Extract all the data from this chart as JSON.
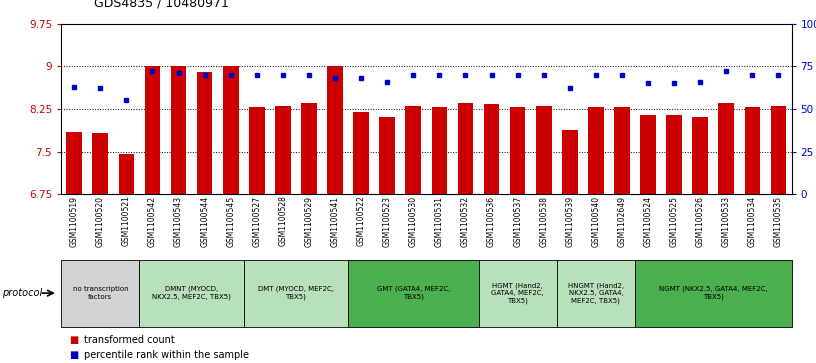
{
  "title": "GDS4835 / 10480971",
  "samples": [
    "GSM1100519",
    "GSM1100520",
    "GSM1100521",
    "GSM1100542",
    "GSM1100543",
    "GSM1100544",
    "GSM1100545",
    "GSM1100527",
    "GSM1100528",
    "GSM1100529",
    "GSM1100541",
    "GSM1100522",
    "GSM1100523",
    "GSM1100530",
    "GSM1100531",
    "GSM1100532",
    "GSM1100536",
    "GSM1100537",
    "GSM1100538",
    "GSM1100539",
    "GSM1100540",
    "GSM1102649",
    "GSM1100524",
    "GSM1100525",
    "GSM1100526",
    "GSM1100533",
    "GSM1100534",
    "GSM1100535"
  ],
  "bar_values": [
    7.85,
    7.82,
    7.45,
    9.0,
    9.0,
    8.9,
    9.0,
    8.28,
    8.3,
    8.35,
    9.0,
    8.2,
    8.1,
    8.3,
    8.28,
    8.35,
    8.33,
    8.28,
    8.3,
    7.88,
    8.28,
    8.28,
    8.15,
    8.15,
    8.1,
    8.35,
    8.28,
    8.3
  ],
  "dot_values": [
    63,
    62,
    55,
    72,
    71,
    70,
    70,
    70,
    70,
    70,
    68,
    68,
    66,
    70,
    70,
    70,
    70,
    70,
    70,
    62,
    70,
    70,
    65,
    65,
    66,
    72,
    70,
    70
  ],
  "ylim": [
    6.75,
    9.75
  ],
  "y2lim": [
    0,
    100
  ],
  "yticks": [
    6.75,
    7.5,
    8.25,
    9.0,
    9.75
  ],
  "ytick_labels": [
    "6.75",
    "7.5",
    "8.25",
    "9",
    "9.75"
  ],
  "y2ticks": [
    0,
    25,
    50,
    75,
    100
  ],
  "y2tick_labels": [
    "0",
    "25",
    "50",
    "75",
    "100%"
  ],
  "bar_color": "#cc0000",
  "dot_color": "#0000cc",
  "groups": [
    {
      "label": "no transcription\nfactors",
      "start": 0,
      "end": 3,
      "color": "#d3d3d3"
    },
    {
      "label": "DMNT (MYOCD,\nNKX2.5, MEF2C, TBX5)",
      "start": 3,
      "end": 7,
      "color": "#b8e0ba"
    },
    {
      "label": "DMT (MYOCD, MEF2C,\nTBX5)",
      "start": 7,
      "end": 11,
      "color": "#b8e0ba"
    },
    {
      "label": "GMT (GATA4, MEF2C,\nTBX5)",
      "start": 11,
      "end": 16,
      "color": "#4caf50"
    },
    {
      "label": "HGMT (Hand2,\nGATA4, MEF2C,\nTBX5)",
      "start": 16,
      "end": 19,
      "color": "#b8e0ba"
    },
    {
      "label": "HNGMT (Hand2,\nNKX2.5, GATA4,\nMEF2C, TBX5)",
      "start": 19,
      "end": 22,
      "color": "#b8e0ba"
    },
    {
      "label": "NGMT (NKX2.5, GATA4, MEF2C,\nTBX5)",
      "start": 22,
      "end": 28,
      "color": "#4caf50"
    }
  ],
  "protocol_label": "protocol",
  "legend_bar": "transformed count",
  "legend_dot": "percentile rank within the sample",
  "fig_width": 8.16,
  "fig_height": 3.63
}
